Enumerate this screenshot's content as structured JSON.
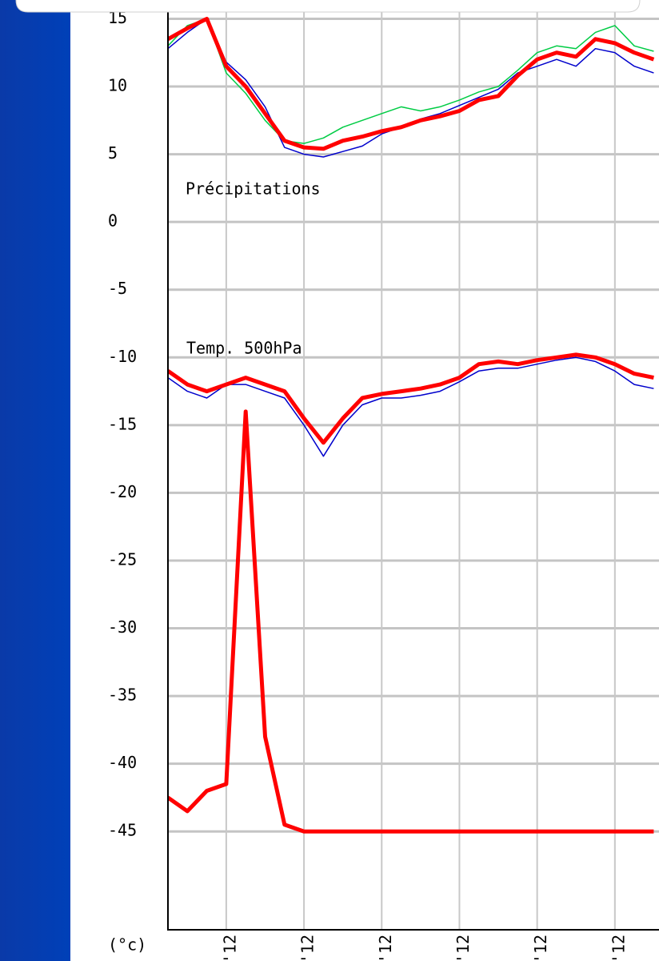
{
  "chart_data": {
    "type": "line",
    "annotations": [
      "Précipitations",
      "Temp. 500hPa"
    ],
    "y_unit_label": "(°c)",
    "x": [
      0,
      1,
      2,
      3,
      4,
      5,
      6,
      7,
      8,
      9,
      10,
      11,
      12,
      13,
      14,
      15,
      16,
      17,
      18,
      19,
      20,
      21,
      22,
      23,
      24,
      25
    ],
    "xlim": [
      0,
      25.27
    ],
    "xticks": [
      {
        "value": 3,
        "label": "'12"
      },
      {
        "value": 7,
        "label": "'12"
      },
      {
        "value": 11,
        "label": "'12"
      },
      {
        "value": 15,
        "label": "'12"
      },
      {
        "value": 19,
        "label": "'12"
      },
      {
        "value": 23,
        "label": "'12"
      }
    ],
    "ylim": [
      -52.2,
      15.5
    ],
    "yticks": [
      15,
      10,
      5,
      0,
      -5,
      -10,
      -15,
      -20,
      -25,
      -30,
      -35,
      -40,
      -45
    ],
    "grid": true,
    "series": [
      {
        "color": "#0000cc",
        "values": [
          12.8,
          14,
          15,
          11.8,
          10.5,
          8.5,
          5.5,
          5,
          4.8,
          5.2,
          5.6,
          6.5,
          7,
          7.6,
          8,
          8.6,
          9.2,
          9.8,
          11,
          11.5,
          12,
          11.5,
          12.8,
          12.5,
          11.5,
          11
        ]
      },
      {
        "color": "#00cc44",
        "values": [
          13,
          14.5,
          15,
          11,
          9.5,
          7.5,
          6,
          5.8,
          6.2,
          7,
          7.5,
          8,
          8.5,
          8.2,
          8.5,
          9,
          9.6,
          10,
          11.2,
          12.5,
          13,
          12.8,
          14,
          14.5,
          13,
          12.6
        ]
      },
      {
        "color": "#ff0000",
        "values": [
          13.5,
          14.3,
          15,
          11.5,
          10,
          8,
          6,
          5.5,
          5.4,
          6,
          6.3,
          6.7,
          7,
          7.5,
          7.8,
          8.2,
          9,
          9.3,
          10.8,
          12,
          12.5,
          12.2,
          13.5,
          13.2,
          12.5,
          12
        ]
      },
      {
        "color": "#0000cc",
        "values": [
          -11.5,
          -12.5,
          -13,
          -12,
          -12,
          -12.5,
          -13,
          -15,
          -17.3,
          -15,
          -13.5,
          -13,
          -13,
          -12.8,
          -12.5,
          -11.8,
          -11,
          -10.8,
          -10.8,
          -10.5,
          -10.2,
          -10,
          -10.3,
          -11,
          -12,
          -12.3
        ]
      },
      {
        "color": "#ff0000",
        "values": [
          -11,
          -12,
          -12.5,
          -12,
          -11.5,
          -12,
          -12.5,
          -14.5,
          -16.3,
          -14.5,
          -13,
          -12.7,
          -12.5,
          -12.3,
          -12,
          -11.5,
          -10.5,
          -10.3,
          -10.5,
          -10.2,
          -10,
          -9.8,
          -10,
          -10.5,
          -11.2,
          -11.5
        ]
      },
      {
        "color": "#ff0000",
        "values": [
          -42.5,
          -43.5,
          -42,
          -41.5,
          -14,
          -38,
          -44.5,
          -45,
          -45,
          -45,
          -45,
          -45,
          -45,
          -45,
          -45,
          -45,
          -45,
          -45,
          -45,
          -45,
          -45,
          -45,
          -45,
          -45,
          -45,
          -45
        ]
      }
    ]
  }
}
